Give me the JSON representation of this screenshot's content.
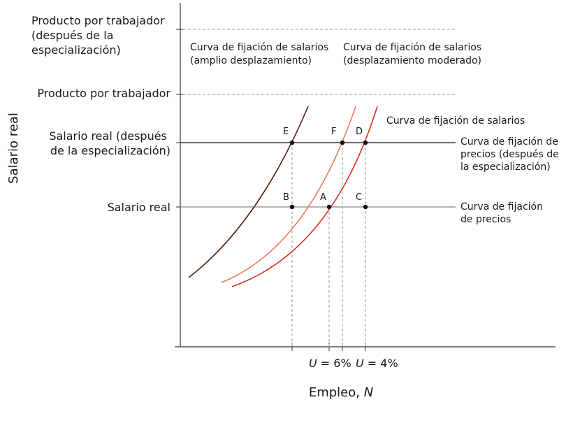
{
  "y_axis": {
    "title": "Salario real",
    "labels": {
      "product_after": [
        "Producto por trabajador",
        "(después de la",
        "especialización)"
      ],
      "product": "Producto por trabajador",
      "wage_after": [
        "Salario real (después",
        "de la especialización)"
      ],
      "wage": "Salario real"
    }
  },
  "x_axis": {
    "title_text": "Empleo, ",
    "title_var": "N",
    "tick_u6_var": "U",
    "tick_u6_rest": " = 6%",
    "tick_u4_var": "U",
    "tick_u4_rest": " = 4%"
  },
  "curves": {
    "wage_setting": "Curva de fijación de salarios",
    "wage_setting_large": [
      "Curva de fijación de salarios",
      "(amplio desplazamiento)"
    ],
    "wage_setting_moderate": [
      "Curva de fijación de salarios",
      "(desplazamiento moderado)"
    ],
    "price_setting_after": [
      "Curva de fijación de",
      "precios (después de",
      "la especialización)"
    ],
    "price_setting": [
      "Curva de fijación",
      "de precios"
    ]
  },
  "points": {
    "A": "A",
    "B": "B",
    "C": "C",
    "D": "D",
    "E": "E",
    "F": "F"
  },
  "colors": {
    "wage_curve": "#d7301f",
    "moderate_shift": "#f07a55",
    "large_shift": "#5a1a10",
    "dashed": "#999999",
    "price_line_after": "#111111",
    "price_line": "#888888",
    "axis": "#333333"
  }
}
